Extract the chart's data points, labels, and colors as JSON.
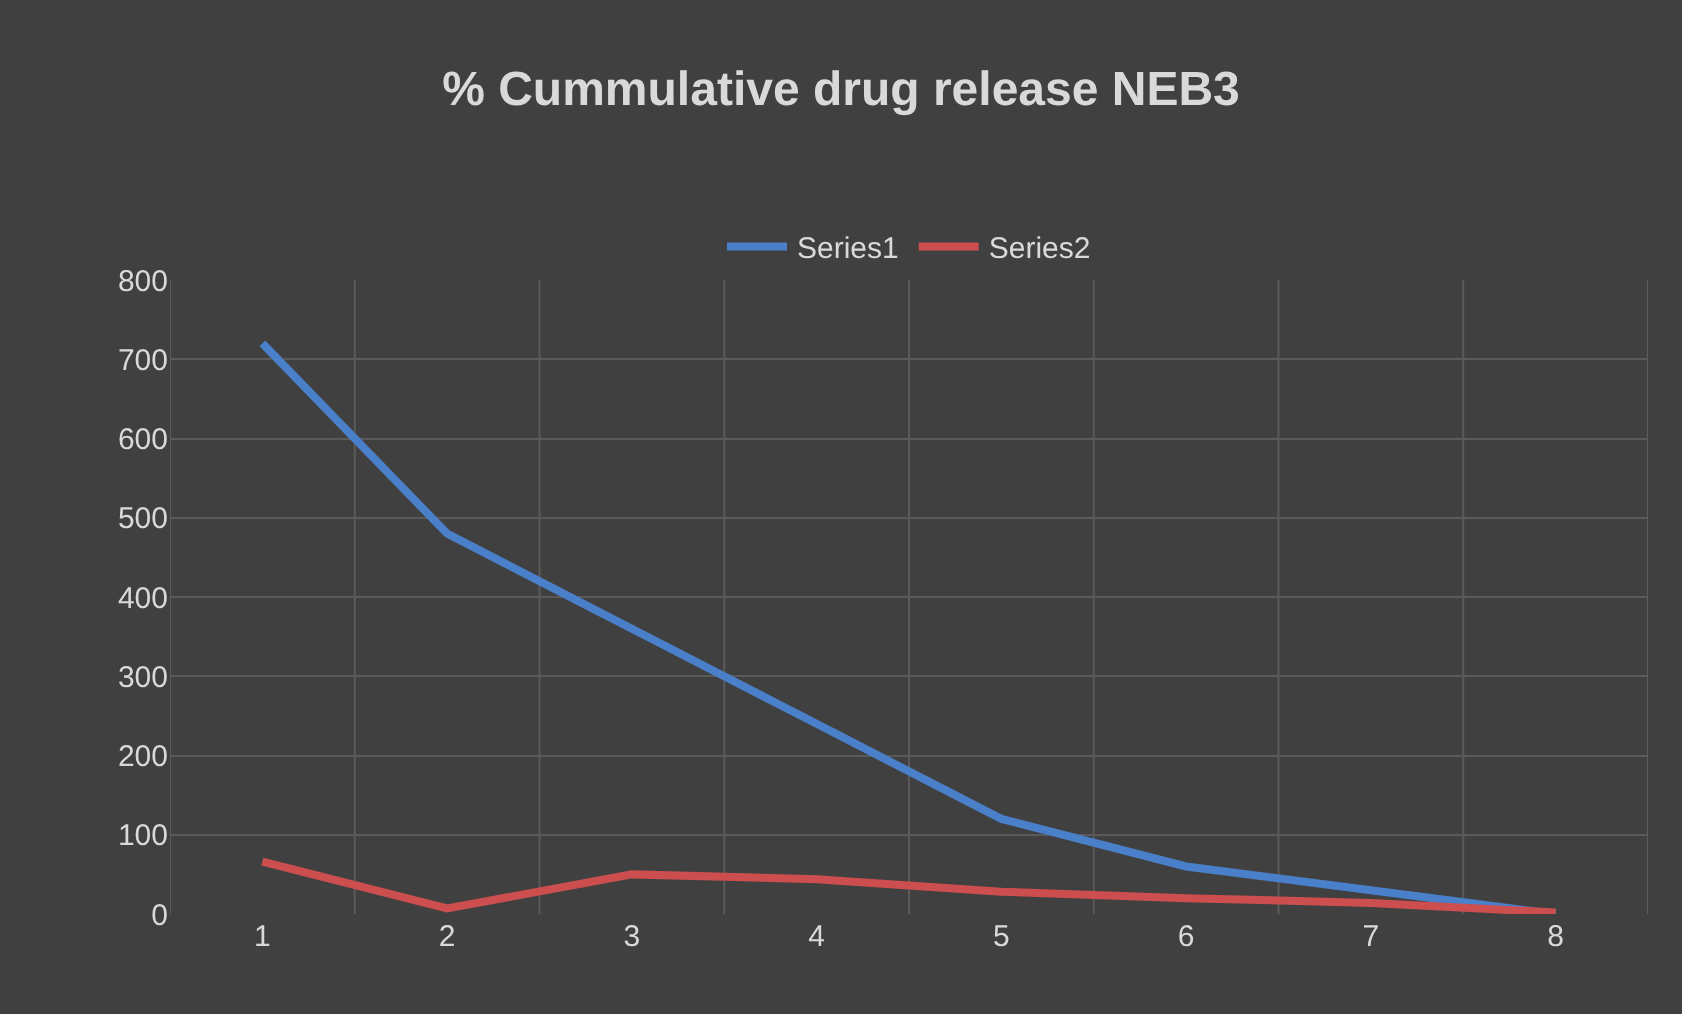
{
  "chart_data": {
    "type": "line",
    "title": "% Cummulative drug release NEB3",
    "categories": [
      "1",
      "2",
      "3",
      "4",
      "5",
      "6",
      "7",
      "8"
    ],
    "series": [
      {
        "name": "Series1",
        "color": "#4a7fc9",
        "values": [
          720,
          480,
          360,
          240,
          120,
          60,
          30,
          0
        ]
      },
      {
        "name": "Series2",
        "color": "#cc4e4e",
        "values": [
          66,
          7,
          50,
          44,
          28,
          20,
          14,
          2
        ]
      }
    ],
    "ylim": [
      0,
      800
    ],
    "yticks": [
      0,
      100,
      200,
      300,
      400,
      500,
      600,
      700,
      800
    ],
    "grid": true,
    "legend": "top",
    "marker": "none",
    "line_style": "solid"
  }
}
